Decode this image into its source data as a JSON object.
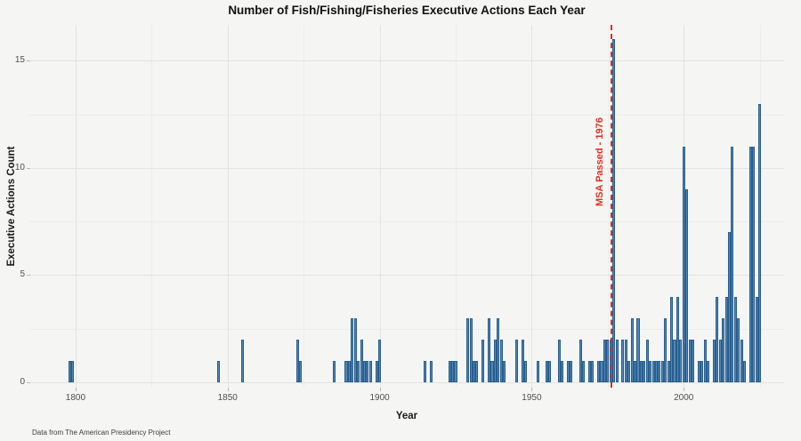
{
  "header": {
    "title": "Number of Fish/Fishing/Fisheries Executive Actions Each Year"
  },
  "axes": {
    "x_label": "Year",
    "y_label": "Executive Actions Count",
    "x_major_ticks": [
      1800,
      1850,
      1900,
      1950,
      2000
    ],
    "x_minor_ticks": [
      1825,
      1875,
      1925,
      1975,
      2025
    ],
    "y_major_ticks": [
      0,
      5,
      10,
      15
    ],
    "y_minor_ticks": [
      2.5,
      7.5,
      12.5
    ]
  },
  "annotation": {
    "label": "MSA Passed - 1976",
    "x": 1976
  },
  "caption": {
    "text": "Data from The American Presidency Project"
  },
  "colors": {
    "background": "#f5f5f3",
    "grid_major": "#e3e3e1",
    "grid_minor": "#ececea",
    "bar_fill": "#4e87b5",
    "bar_border": "#2a5d8c",
    "annotation_red": "#e02e20"
  },
  "chart_data": {
    "type": "bar",
    "title": "Number of Fish/Fishing/Fisheries Executive Actions Each Year",
    "xlabel": "Year",
    "ylabel": "Executive Actions Count",
    "caption": "Data from The American Presidency Project",
    "xlim": [
      1784.8,
      2033
    ],
    "ylim": [
      -0.25,
      16.68
    ],
    "grid": "on",
    "legend": "none",
    "vline": {
      "x": 1976,
      "style": "dashed",
      "color": "#e02e20",
      "label": "MSA Passed - 1976"
    },
    "points": [
      [
        1798,
        1
      ],
      [
        1799,
        1
      ],
      [
        1847,
        1
      ],
      [
        1855,
        2
      ],
      [
        1873,
        2
      ],
      [
        1874,
        1
      ],
      [
        1885,
        1
      ],
      [
        1889,
        1
      ],
      [
        1890,
        1
      ],
      [
        1891,
        3
      ],
      [
        1892,
        3
      ],
      [
        1893,
        1
      ],
      [
        1894,
        2
      ],
      [
        1895,
        1
      ],
      [
        1896,
        1
      ],
      [
        1897,
        1
      ],
      [
        1899,
        1
      ],
      [
        1900,
        2
      ],
      [
        1915,
        1
      ],
      [
        1917,
        1
      ],
      [
        1923,
        1
      ],
      [
        1924,
        1
      ],
      [
        1925,
        1
      ],
      [
        1929,
        3
      ],
      [
        1930,
        3
      ],
      [
        1931,
        1
      ],
      [
        1932,
        1
      ],
      [
        1934,
        2
      ],
      [
        1936,
        3
      ],
      [
        1937,
        1
      ],
      [
        1938,
        2
      ],
      [
        1939,
        3
      ],
      [
        1940,
        2
      ],
      [
        1941,
        1
      ],
      [
        1945,
        2
      ],
      [
        1947,
        2
      ],
      [
        1948,
        1
      ],
      [
        1952,
        1
      ],
      [
        1955,
        1
      ],
      [
        1956,
        1
      ],
      [
        1959,
        2
      ],
      [
        1960,
        1
      ],
      [
        1962,
        1
      ],
      [
        1963,
        1
      ],
      [
        1966,
        2
      ],
      [
        1967,
        1
      ],
      [
        1969,
        1
      ],
      [
        1970,
        1
      ],
      [
        1972,
        1
      ],
      [
        1973,
        1
      ],
      [
        1974,
        2
      ],
      [
        1975,
        2
      ],
      [
        1976,
        2
      ],
      [
        1977,
        16
      ],
      [
        1978,
        2
      ],
      [
        1980,
        2
      ],
      [
        1981,
        2
      ],
      [
        1982,
        1
      ],
      [
        1983,
        3
      ],
      [
        1984,
        1
      ],
      [
        1985,
        3
      ],
      [
        1986,
        1
      ],
      [
        1987,
        1
      ],
      [
        1988,
        2
      ],
      [
        1989,
        1
      ],
      [
        1990,
        1
      ],
      [
        1991,
        1
      ],
      [
        1992,
        1
      ],
      [
        1993,
        1
      ],
      [
        1994,
        3
      ],
      [
        1995,
        1
      ],
      [
        1996,
        4
      ],
      [
        1997,
        2
      ],
      [
        1998,
        4
      ],
      [
        1999,
        2
      ],
      [
        2000,
        11
      ],
      [
        2001,
        9
      ],
      [
        2002,
        2
      ],
      [
        2003,
        2
      ],
      [
        2005,
        1
      ],
      [
        2006,
        1
      ],
      [
        2007,
        2
      ],
      [
        2008,
        1
      ],
      [
        2010,
        2
      ],
      [
        2011,
        4
      ],
      [
        2012,
        2
      ],
      [
        2013,
        3
      ],
      [
        2014,
        4
      ],
      [
        2015,
        7
      ],
      [
        2016,
        11
      ],
      [
        2017,
        4
      ],
      [
        2018,
        3
      ],
      [
        2019,
        2
      ],
      [
        2020,
        1
      ],
      [
        2022,
        11
      ],
      [
        2023,
        11
      ],
      [
        2024,
        4
      ],
      [
        2025,
        13
      ]
    ]
  }
}
